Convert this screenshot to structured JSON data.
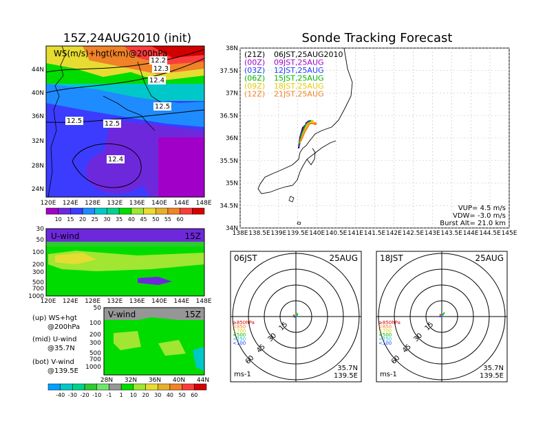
{
  "main_title": "Sonde Tracking Forecast",
  "wind_map": {
    "title": "15Z,24AUG2010 (init)",
    "label": "WS(m/s)+hgt(km)@200hPa",
    "contour_labels": [
      "12.2",
      "12.3",
      "12.4",
      "12.5",
      "12.5",
      "12.5",
      "12.4"
    ],
    "lat_ticks": [
      "44N",
      "40N",
      "36N",
      "32N",
      "28N",
      "24N"
    ],
    "lon_ticks": [
      "120E",
      "124E",
      "128E",
      "132E",
      "136E",
      "140E",
      "144E",
      "148E"
    ],
    "colorbar_ticks": [
      "10",
      "15",
      "20",
      "25",
      "30",
      "35",
      "40",
      "45",
      "50",
      "55",
      "60"
    ],
    "colors": [
      "#a000c8",
      "#6e28dc",
      "#3c3cff",
      "#1e8cff",
      "#00c8c8",
      "#00d28c",
      "#00dc00",
      "#a0e632",
      "#e6dc32",
      "#e6af2d",
      "#f08228",
      "#fa3c3c",
      "#d20000"
    ]
  },
  "u_wind": {
    "label": "U-wind",
    "time": "15Z",
    "p_ticks": [
      "30",
      "50",
      "100",
      "200",
      "300",
      "500",
      "700",
      "1000"
    ],
    "lon_ticks": [
      "120E",
      "124E",
      "128E",
      "132E",
      "136E",
      "140E",
      "144E",
      "148E"
    ]
  },
  "v_wind": {
    "label": "V-wind",
    "time": "15Z",
    "p_ticks": [
      "50",
      "100",
      "200",
      "300",
      "500",
      "700",
      "1000"
    ],
    "lat_ticks": [
      "28N",
      "32N",
      "36N",
      "40N",
      "44N"
    ],
    "colorbar_ticks": [
      "-40",
      "-30",
      "-20",
      "-10",
      "-1",
      "1",
      "10",
      "20",
      "30",
      "40",
      "50",
      "60"
    ],
    "colors": [
      "#00a0ff",
      "#00c8c8",
      "#00d28c",
      "#32c832",
      "#6ee66e",
      "#969696",
      "#00dc00",
      "#a0e632",
      "#e6dc32",
      "#e6af2d",
      "#f08228",
      "#fa3c3c",
      "#d20000"
    ]
  },
  "legend_notes": [
    [
      "(up) WS+hgt",
      "@200hPa"
    ],
    [
      "(mid) U-wind",
      "@35.7N"
    ],
    [
      "(bot) V-wind",
      "@139.5E"
    ]
  ],
  "track_map": {
    "lat_ticks": [
      "38N",
      "37.5N",
      "37N",
      "36.5N",
      "36N",
      "35.5N",
      "35N",
      "34.5N",
      "34N"
    ],
    "lon_ticks": [
      "138E",
      "138.5E",
      "139E",
      "139.5E",
      "140E",
      "140.5E",
      "141E",
      "141.5E",
      "142E",
      "142.5E",
      "143E",
      "143.5E",
      "144E",
      "144.5E",
      "145E"
    ],
    "tracks": [
      {
        "utc": "(21Z)",
        "jst": "06JST,25AUG2010",
        "color": "#000000"
      },
      {
        "utc": "(00Z)",
        "jst": "09JST,25AUG",
        "color": "#a000c8"
      },
      {
        "utc": "(03Z)",
        "jst": "12JST,25AUG",
        "color": "#1e3cff"
      },
      {
        "utc": "(06Z)",
        "jst": "15JST,25AUG",
        "color": "#00b400"
      },
      {
        "utc": "(09Z)",
        "jst": "18JST,25AUG",
        "color": "#e6c800"
      },
      {
        "utc": "(12Z)",
        "jst": "21JST,25AUG",
        "color": "#f08228"
      }
    ],
    "params": [
      "VUP= 4.5 m/s",
      "VDW= -3.0 m/s",
      "Burst Alt= 21.0 km"
    ]
  },
  "hodo_left": {
    "time": "06JST",
    "date": "25AUG",
    "levels": [
      "≥850hPa",
      "<850",
      "<700",
      "<500",
      "<250",
      "<100"
    ],
    "level_colors": [
      "#d20000",
      "#f08228",
      "#e6c800",
      "#00b400",
      "#00c8c8",
      "#1e3cff"
    ],
    "ring_labels": [
      "15",
      "30",
      "45",
      "60"
    ],
    "loc": [
      "35.7N",
      "139.5E"
    ],
    "unit": "ms-1"
  },
  "hodo_right": {
    "time": "18JST",
    "date": "25AUG",
    "levels": [
      "≥850hPa",
      "<850",
      "<700",
      "<500",
      "<250",
      "<100"
    ],
    "level_colors": [
      "#d20000",
      "#f08228",
      "#e6c800",
      "#00b400",
      "#00c8c8",
      "#1e3cff"
    ],
    "ring_labels": [
      "15",
      "30",
      "45",
      "60"
    ],
    "loc": [
      "35.7N",
      "139.5E"
    ],
    "unit": "ms-1"
  }
}
